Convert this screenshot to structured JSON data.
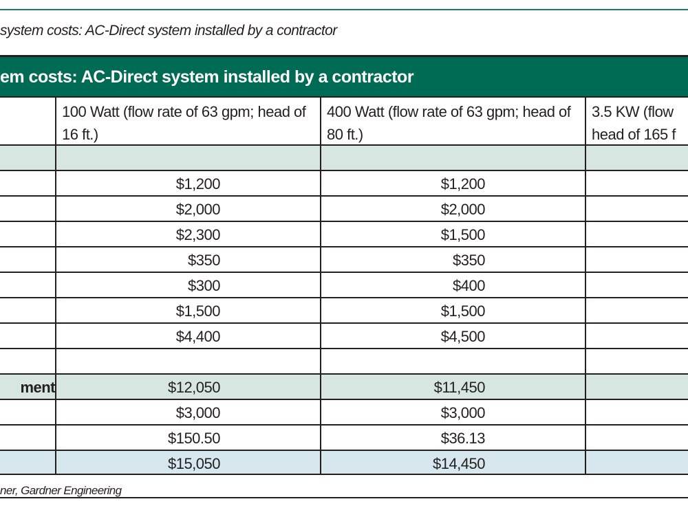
{
  "caption": "system costs: AC-Direct system installed by a contractor",
  "table": {
    "title": "em costs: AC-Direct system installed by a contractor",
    "columns": [
      "",
      "100 Watt (flow rate of 63 gpm; head of 16 ft.)",
      "400 Watt (flow rate of 63 gpm; head of 80 ft.)",
      "3.5 KW (flow head of 165 f"
    ],
    "rows": [
      {
        "label": "",
        "c1": "",
        "c2": "",
        "style": "green"
      },
      {
        "label": "",
        "c1": "$1,200",
        "c2": "$1,200",
        "style": ""
      },
      {
        "label": "",
        "c1": "$2,000",
        "c2": "$2,000",
        "style": ""
      },
      {
        "label": "",
        "c1": "$2,300",
        "c2": "$1,500",
        "style": ""
      },
      {
        "label": "",
        "c1": "$350",
        "c2": "$350",
        "style": ""
      },
      {
        "label": "",
        "c1": "$300",
        "c2": "$400",
        "style": ""
      },
      {
        "label": "",
        "c1": "$1,500",
        "c2": "$1,500",
        "style": ""
      },
      {
        "label": "",
        "c1": "$4,400",
        "c2": "$4,500",
        "style": ""
      },
      {
        "label": "",
        "c1": "",
        "c2": "",
        "style": ""
      },
      {
        "label": "ment",
        "c1": "$12,050",
        "c2": "$11,450",
        "style": "green"
      },
      {
        "label": "",
        "c1": "$3,000",
        "c2": "$3,000",
        "style": ""
      },
      {
        "label": "",
        "c1": "$150.50",
        "c2": "$36.13",
        "style": ""
      },
      {
        "label": "",
        "c1": "$15,050",
        "c2": "$14,450",
        "style": "blue"
      }
    ]
  },
  "footer": "ner, Gardner Engineering"
}
